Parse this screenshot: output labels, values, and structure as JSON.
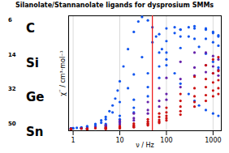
{
  "chart_data": {
    "type": "scatter",
    "title": "Silanolate/Stannanolate ligands for dysprosium SMMs",
    "xlabel": "ν / Hz",
    "ylabel": "χ′′ / cm³·mol⁻¹",
    "log": "x",
    "grid": true,
    "tick_labels": "x",
    "xlim": [
      0.8,
      1500
    ],
    "xticks": [
      1,
      10,
      100,
      1000
    ],
    "ylim": [
      0,
      1.0
    ],
    "yticks": [],
    "annotations": [
      {
        "superscript": "6",
        "label": "C"
      },
      {
        "superscript": "14",
        "label": "Si"
      },
      {
        "superscript": "32",
        "label": "Ge"
      },
      {
        "superscript": "50",
        "label": "Sn"
      }
    ],
    "rules": [
      {
        "x": 50,
        "color": "#EE1111"
      }
    ],
    "series": [
      {
        "color": "#1155EE",
        "x": [
          0.9,
          1.0,
          1.2,
          1.5,
          2.0,
          3.0,
          4.0,
          5.0,
          6.0,
          7.0,
          8.0,
          9.0,
          10.0,
          12.0,
          15.0,
          20.0,
          25.0,
          30.0,
          40.0,
          50.0,
          60.0,
          80.0,
          100.0,
          150.0,
          200.0,
          300.0,
          400.0,
          500.0,
          700.0,
          1000.0,
          1300.0
        ],
        "values": [
          0.02,
          0.022,
          0.025,
          0.03,
          0.04,
          0.06,
          0.09,
          0.12,
          0.17,
          0.22,
          0.28,
          0.35,
          0.43,
          0.56,
          0.71,
          0.86,
          0.95,
          0.99,
          0.96,
          0.9,
          0.82,
          0.71,
          0.62,
          0.5,
          0.41,
          0.32,
          0.26,
          0.22,
          0.18,
          0.15,
          0.13
        ]
      },
      {
        "color": "#1155EE",
        "x": [
          0.9,
          1.0,
          1.5,
          2.0,
          3.0,
          4.0,
          5.0,
          7.0,
          10.0,
          15.0,
          20.0,
          30.0,
          50.0,
          70.0,
          100.0,
          150.0,
          200.0,
          300.0,
          500.0,
          700.0,
          1000.0,
          1300.0
        ],
        "values": [
          0.02,
          0.022,
          0.027,
          0.035,
          0.05,
          0.07,
          0.1,
          0.16,
          0.25,
          0.37,
          0.49,
          0.64,
          0.77,
          0.84,
          0.89,
          0.9,
          0.88,
          0.82,
          0.73,
          0.67,
          0.6,
          0.55
        ]
      },
      {
        "color": "#1155EE",
        "x": [
          0.9,
          1.5,
          3.0,
          5.0,
          10.0,
          20.0,
          40.0,
          70.0,
          100.0,
          150.0,
          200.0,
          300.0,
          400.0,
          700.0,
          1000.0,
          1300.0
        ],
        "values": [
          0.02,
          0.024,
          0.035,
          0.06,
          0.13,
          0.27,
          0.5,
          0.68,
          0.78,
          0.85,
          0.88,
          0.9,
          0.91,
          0.89,
          0.86,
          0.83
        ]
      },
      {
        "color": "#1155EE",
        "x": [
          0.9,
          1.5,
          3.0,
          5.0,
          10.0,
          20.0,
          40.0,
          70.0,
          100.0,
          200.0,
          400.0,
          700.0,
          1000.0,
          1300.0
        ],
        "values": [
          0.018,
          0.022,
          0.032,
          0.05,
          0.1,
          0.2,
          0.38,
          0.56,
          0.68,
          0.82,
          0.89,
          0.88,
          0.85,
          0.82
        ]
      },
      {
        "color": "#1155EE",
        "x": [
          0.9,
          2.0,
          5.0,
          10.0,
          20.0,
          40.0,
          70.0,
          100.0,
          200.0,
          400.0,
          700.0,
          1000.0,
          1300.0
        ],
        "values": [
          0.018,
          0.025,
          0.04,
          0.08,
          0.16,
          0.3,
          0.46,
          0.57,
          0.72,
          0.8,
          0.8,
          0.77,
          0.74
        ]
      },
      {
        "color": "#6622AA",
        "x": [
          0.9,
          1.5,
          3.0,
          5.0,
          10.0,
          20.0,
          40.0,
          70.0,
          100.0,
          200.0,
          400.0,
          700.0,
          1000.0,
          1300.0
        ],
        "values": [
          0.018,
          0.022,
          0.032,
          0.048,
          0.088,
          0.15,
          0.25,
          0.37,
          0.46,
          0.6,
          0.68,
          0.68,
          0.65,
          0.62
        ]
      },
      {
        "color": "#6622AA",
        "x": [
          0.9,
          2.0,
          5.0,
          10.0,
          20.0,
          40.0,
          70.0,
          100.0,
          200.0,
          400.0,
          700.0,
          1000.0,
          1300.0
        ],
        "values": [
          0.018,
          0.023,
          0.038,
          0.068,
          0.11,
          0.18,
          0.26,
          0.32,
          0.45,
          0.55,
          0.57,
          0.56,
          0.53
        ]
      },
      {
        "color": "#6622AA",
        "x": [
          0.9,
          2.0,
          5.0,
          10.0,
          20.0,
          40.0,
          70.0,
          100.0,
          200.0,
          400.0,
          700.0,
          1000.0,
          1300.0
        ],
        "values": [
          0.016,
          0.02,
          0.032,
          0.055,
          0.09,
          0.15,
          0.21,
          0.27,
          0.38,
          0.48,
          0.51,
          0.5,
          0.48
        ]
      },
      {
        "color": "#CC1111",
        "x": [
          0.9,
          1.5,
          3.0,
          5.0,
          10.0,
          20.0,
          40.0,
          70.0,
          100.0,
          200.0,
          400.0,
          700.0,
          1000.0,
          1300.0
        ],
        "values": [
          0.015,
          0.018,
          0.022,
          0.028,
          0.04,
          0.063,
          0.1,
          0.15,
          0.2,
          0.32,
          0.47,
          0.57,
          0.62,
          0.64
        ]
      },
      {
        "color": "#CC1111",
        "x": [
          0.9,
          2.0,
          5.0,
          10.0,
          20.0,
          40.0,
          70.0,
          100.0,
          200.0,
          400.0,
          700.0,
          1000.0,
          1300.0
        ],
        "values": [
          0.014,
          0.017,
          0.024,
          0.034,
          0.05,
          0.08,
          0.12,
          0.16,
          0.26,
          0.37,
          0.45,
          0.5,
          0.52
        ]
      },
      {
        "color": "#CC1111",
        "x": [
          0.9,
          2.0,
          5.0,
          10.0,
          20.0,
          40.0,
          70.0,
          100.0,
          200.0,
          400.0,
          700.0,
          1000.0,
          1300.0
        ],
        "values": [
          0.013,
          0.015,
          0.02,
          0.028,
          0.04,
          0.065,
          0.095,
          0.13,
          0.21,
          0.3,
          0.38,
          0.42,
          0.44
        ]
      },
      {
        "color": "#CC1111",
        "x": [
          0.9,
          2.0,
          5.0,
          10.0,
          20.0,
          40.0,
          70.0,
          100.0,
          200.0,
          400.0,
          700.0,
          1000.0,
          1300.0
        ],
        "values": [
          0.012,
          0.014,
          0.018,
          0.024,
          0.034,
          0.055,
          0.08,
          0.11,
          0.17,
          0.25,
          0.31,
          0.35,
          0.37
        ]
      },
      {
        "color": "#CC1111",
        "x": [
          0.9,
          2.0,
          5.0,
          10.0,
          20.0,
          40.0,
          70.0,
          100.0,
          200.0,
          400.0,
          700.0,
          1000.0,
          1300.0
        ],
        "values": [
          0.011,
          0.013,
          0.016,
          0.021,
          0.03,
          0.047,
          0.068,
          0.09,
          0.14,
          0.21,
          0.26,
          0.3,
          0.32
        ]
      }
    ]
  }
}
